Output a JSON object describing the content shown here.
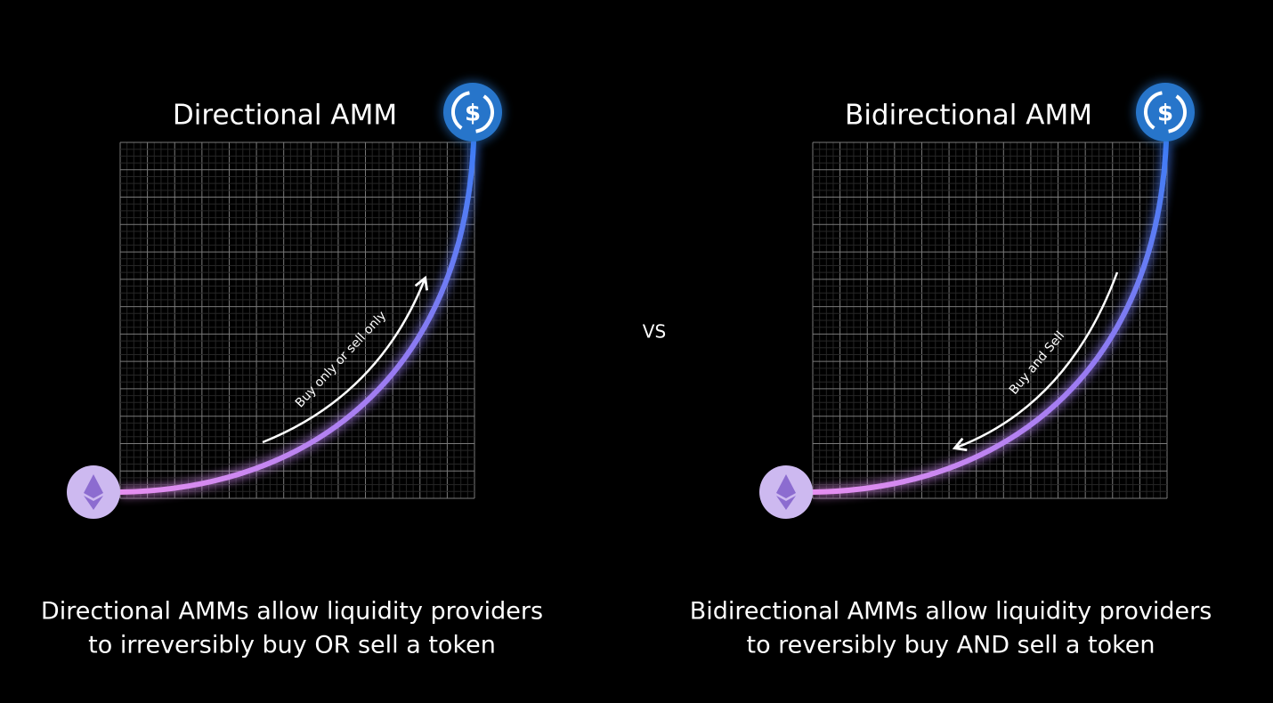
{
  "vs": "VS",
  "panels": [
    {
      "title": "Directional AMM",
      "curve_label": "Buy only or sell only",
      "caption": [
        "Directional AMMs allow liquidity providers",
        "to irreversibly buy OR sell a token"
      ]
    },
    {
      "title": "Bidirectional AMM",
      "curve_label": "Buy and Sell",
      "caption": [
        "Bidirectional AMMs allow liquidity providers",
        "to reversibly buy AND sell a token"
      ]
    }
  ]
}
